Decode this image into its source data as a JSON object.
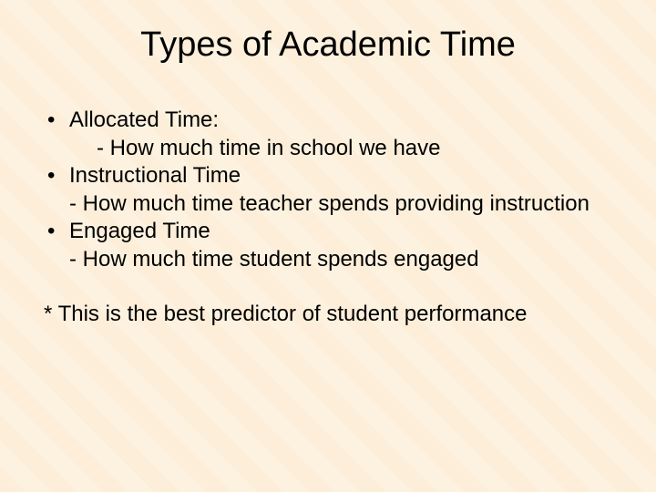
{
  "slide": {
    "title": "Types of Academic Time",
    "bullets": [
      {
        "label": "Allocated Time:",
        "sub": "- How much time in school we have",
        "sub_indent": true
      },
      {
        "label": "Instructional Time",
        "sub": "- How much time teacher spends providing instruction",
        "sub_indent": false
      },
      {
        "label": "Engaged Time",
        "sub": "- How much time student spends engaged",
        "sub_indent": false
      }
    ],
    "footnote": "* This is the best predictor of student performance"
  },
  "style": {
    "background_color": "#fdf2e0",
    "text_color": "#000000",
    "title_fontsize": 38,
    "body_fontsize": 24,
    "font_family": "Arial"
  }
}
